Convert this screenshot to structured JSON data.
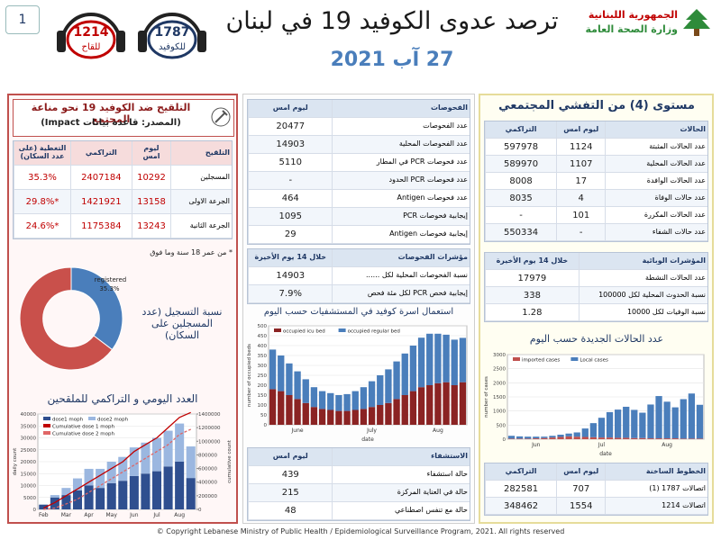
{
  "header": {
    "page_number": "1",
    "hotline_vaccine": {
      "number": "1214",
      "label": "للقاح"
    },
    "hotline_covid": {
      "number": "1787",
      "label": "للكوفيد"
    },
    "title": "ترصد عدوى الكوفيد 19 في لبنان",
    "date": "27 آب 2021",
    "ministry": [
      "الجمهورية اللبنانية",
      "وزارة الصحة العامة"
    ]
  },
  "vaccination": {
    "title": "التلقيح ضد الكوفيد 19  نحو مناعة المجتمع",
    "source": "(المصدر: قاعدة بيانات Impact)",
    "table": {
      "header": [
        "التلقيح",
        "ليوم امس",
        "التراكمي",
        "التغطية (على عدد السكان)"
      ],
      "rows": [
        [
          "المسجلين",
          10292,
          2407184,
          "35.3%"
        ],
        [
          "الجرعة الاولى",
          13158,
          1421921,
          "*29.8%"
        ],
        [
          "الجرعة الثانية",
          13243,
          1175384,
          "*24.6%"
        ]
      ]
    },
    "note": "* من عمر 18 سنة وما فوق",
    "donut_caption": "نسبة التسجيل (عدد المسجلين على السكان)",
    "chart_title": "العدد اليومي و التراكمي للملقحين"
  },
  "tests": {
    "table": {
      "header": [
        "الفحوصات",
        "ليوم امس"
      ],
      "rows": [
        [
          "عدد الفحوصات",
          20477
        ],
        [
          "عدد الفحوصات المحلية",
          14903
        ],
        [
          "عدد فحوصات PCR في المطار",
          5110
        ],
        [
          "عدد فحوصات PCR الحدود",
          "-"
        ],
        [
          "عدد فحوصات Antigen",
          464
        ],
        [
          "إيجابية فحوصات PCR",
          1095
        ],
        [
          "إيجابية فحوصات Antigen",
          29
        ]
      ]
    },
    "indicators": {
      "header": [
        "مؤشرات الفحوصات",
        "خلال 14 يوم الأخيرة"
      ],
      "rows": [
        [
          "نسبة الفحوصات المحلية لكل ......",
          14903
        ],
        [
          "إيجابية فحص PCR لكل مئة فحص",
          "7.9%"
        ]
      ]
    },
    "chart_title": "استعمال اسرة كوفيد في المستشفيات حسب اليوم",
    "hospital": {
      "header": [
        "الاستشفاء",
        "ليوم امس"
      ],
      "rows": [
        [
          "حالة استشفاء",
          439
        ],
        [
          "حالة في العناية المركزة",
          215
        ],
        [
          "حالة مع تنفس اصطناعي",
          48
        ]
      ]
    }
  },
  "cases": {
    "title": "مستوى (4) من التفشي المجتمعي",
    "table": {
      "header": [
        "الحالات",
        "ليوم امس",
        "التراكمي"
      ],
      "rows": [
        [
          "عدد الحالات المثبتة",
          1124,
          597978
        ],
        [
          "عدد الحالات المحلية",
          1107,
          589970
        ],
        [
          "عدد الحالات الوافدة",
          17,
          8008
        ],
        [
          "عدد حالات الوفاة",
          4,
          8035
        ],
        [
          "عدد الحالات المكررة",
          101,
          "-"
        ],
        [
          "عدد حالات الشفاء",
          "-",
          550334
        ]
      ]
    },
    "indicators": {
      "header": [
        "المؤشرات الوبائية",
        "خلال 14 يوم الأخيرة"
      ],
      "rows": [
        [
          "عدد الحالات النشطة",
          17979
        ],
        [
          "نسبة الحدوث المحلية لكل 100000",
          338
        ],
        [
          "نسبة الوفيات لكل 10000",
          1.28
        ]
      ]
    },
    "chart_title": "عدد الحالات الجديدة حسب اليوم",
    "hotlines": {
      "header": [
        "الخطوط الساخنة",
        "ليوم امس",
        "التراكمي"
      ],
      "rows": [
        [
          "اتصالات 1787 (1)",
          707,
          282581
        ],
        [
          "اتصالات 1214",
          1554,
          348462
        ]
      ]
    }
  },
  "footer": "© Copyright Lebanese Ministry of Public Health / Epidemiological Surveillance Program, 2021. All rights reserved",
  "chart_data": [
    {
      "type": "donut",
      "categories": [
        "registered"
      ],
      "values": [
        35.3
      ],
      "value_labels": [
        "35.3%"
      ],
      "color": "#4a7ebb",
      "rest_color": "#c9504b"
    },
    {
      "type": "combo",
      "categories": [
        "Feb",
        null,
        "Mar",
        null,
        "Apr",
        null,
        "May",
        null,
        "Jun",
        null,
        "Jul",
        null,
        "Aug",
        null
      ],
      "series": [
        {
          "name": "dose1 moph",
          "mark": "bar",
          "color": "#2f4f8f",
          "values": [
            2000,
            5000,
            6000,
            8000,
            10000,
            9000,
            11000,
            12000,
            14000,
            15000,
            16000,
            18000,
            20000,
            13158
          ]
        },
        {
          "name": "dose2 moph",
          "mark": "bar",
          "color": "#9bb7e0",
          "values": [
            0,
            1000,
            3000,
            5000,
            7000,
            8000,
            9000,
            10000,
            12000,
            13000,
            14000,
            15000,
            16000,
            13243
          ]
        },
        {
          "name": "Cumulative dose 1 moph",
          "mark": "line",
          "color": "#c00000",
          "axis": "y2",
          "values": [
            20000,
            100000,
            200000,
            300000,
            400000,
            500000,
            600000,
            700000,
            850000,
            950000,
            1050000,
            1200000,
            1350000,
            1421921
          ]
        },
        {
          "name": "Cumulative dose 2 moph",
          "mark": "line",
          "dash": true,
          "color": "#e06666",
          "axis": "y2",
          "values": [
            0,
            20000,
            80000,
            150000,
            250000,
            350000,
            450000,
            550000,
            650000,
            750000,
            850000,
            950000,
            1100000,
            1175384
          ]
        }
      ],
      "ylim": [
        0,
        40000
      ],
      "yticks": [
        0,
        5000,
        10000,
        15000,
        20000,
        25000,
        30000,
        35000,
        40000
      ],
      "y2lim": [
        0,
        1400000
      ],
      "y2ticks": [
        0,
        200000,
        400000,
        600000,
        800000,
        1000000,
        1200000,
        1400000
      ],
      "ylabel": "daily count",
      "y2label": "cumulative count",
      "grid": true
    },
    {
      "type": "bar",
      "categories": [
        null,
        null,
        null,
        "June",
        null,
        null,
        null,
        null,
        null,
        null,
        null,
        null,
        "July",
        null,
        null,
        null,
        null,
        null,
        null,
        null,
        "Aug",
        null,
        null,
        null
      ],
      "series": [
        {
          "name": "occupied icu bed",
          "color": "#8b2323",
          "values": [
            180,
            170,
            150,
            130,
            110,
            90,
            80,
            75,
            70,
            70,
            75,
            80,
            90,
            100,
            110,
            130,
            150,
            170,
            190,
            200,
            210,
            215,
            200,
            215
          ]
        },
        {
          "name": "occupied regular bed",
          "color": "#4a7ebb",
          "values": [
            200,
            180,
            160,
            140,
            120,
            100,
            90,
            85,
            80,
            85,
            95,
            110,
            130,
            150,
            170,
            190,
            210,
            230,
            250,
            260,
            250,
            240,
            230,
            224
          ]
        }
      ],
      "ylim": [
        0,
        500
      ],
      "yticks": [
        0,
        50,
        100,
        150,
        200,
        250,
        300,
        350,
        400,
        450,
        500
      ],
      "xlabel": "date",
      "ylabel": "number of occupied beds",
      "grid": true
    },
    {
      "type": "bar",
      "categories": [
        null,
        null,
        null,
        "Jun",
        null,
        null,
        null,
        null,
        null,
        null,
        null,
        "Jul",
        null,
        null,
        null,
        null,
        null,
        null,
        null,
        "Aug",
        null,
        null,
        null,
        null
      ],
      "series": [
        {
          "name": "imported cases",
          "color": "#c0504d",
          "values": [
            20,
            20,
            20,
            30,
            40,
            60,
            80,
            100,
            90,
            80,
            70,
            60,
            60,
            50,
            50,
            40,
            40,
            30,
            30,
            30,
            30,
            20,
            20,
            20
          ]
        },
        {
          "name": "Local cases",
          "color": "#4a7ebb",
          "values": [
            100,
            80,
            70,
            60,
            50,
            60,
            80,
            100,
            150,
            300,
            500,
            700,
            900,
            1000,
            1100,
            1000,
            900,
            1200,
            1500,
            1300,
            1100,
            1400,
            1600,
            1200
          ]
        }
      ],
      "ylim": [
        0,
        3000
      ],
      "yticks": [
        0,
        500,
        1000,
        1500,
        2000,
        2500,
        3000
      ],
      "xlabel": "date",
      "ylabel": "number of cases",
      "grid": true
    }
  ]
}
